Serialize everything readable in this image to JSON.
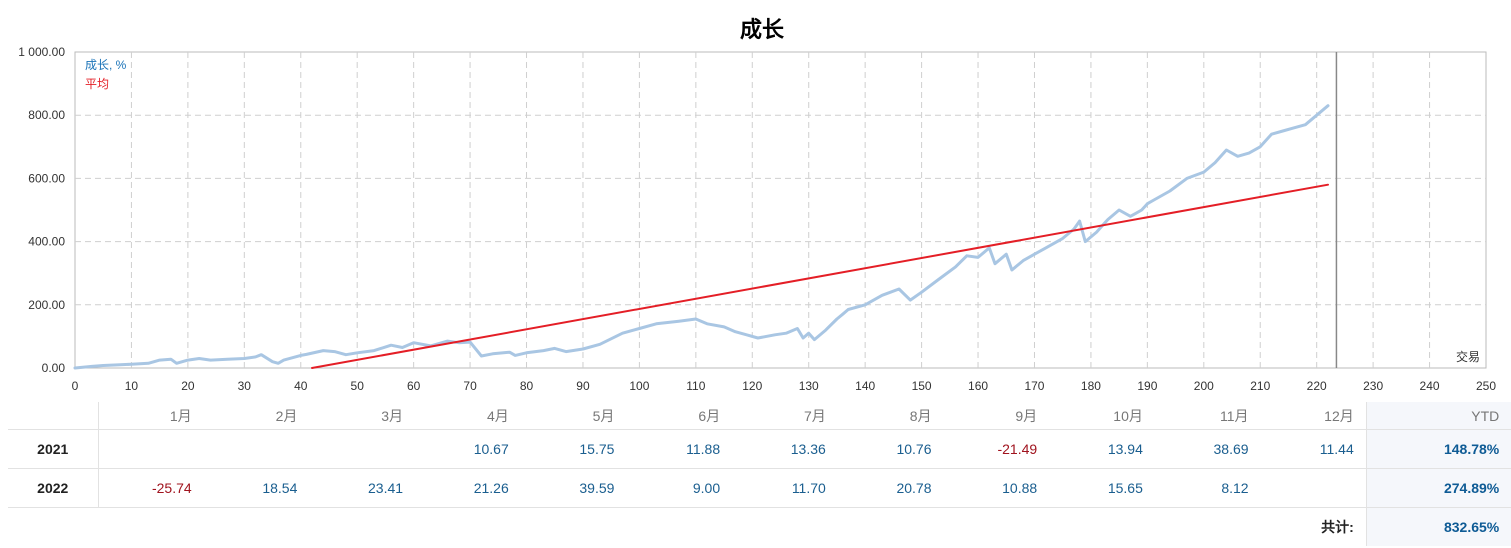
{
  "chart_data": {
    "type": "line",
    "title": "成长",
    "xlabel": "交易",
    "ylabel": "",
    "xlim": [
      0,
      250
    ],
    "ylim": [
      0,
      1000
    ],
    "x_ticks": [
      "0",
      "10",
      "20",
      "30",
      "40",
      "50",
      "60",
      "70",
      "80",
      "90",
      "100",
      "110",
      "120",
      "130",
      "140",
      "150",
      "160",
      "170",
      "180",
      "190",
      "200",
      "210",
      "220",
      "230",
      "240",
      "250"
    ],
    "y_ticks": [
      "0.00",
      "200.00",
      "400.00",
      "600.00",
      "800.00",
      "1 000.00"
    ],
    "grid": true,
    "legend_position": "top-left",
    "vertical_marker_x": 223.5,
    "series": [
      {
        "name": "成长, %",
        "color": "#a9c6e3",
        "x": [
          0,
          3,
          5,
          8,
          10,
          13,
          15,
          17,
          18,
          20,
          22,
          24,
          27,
          30,
          32,
          33,
          35,
          36,
          37,
          40,
          41,
          44,
          46,
          48,
          50,
          53,
          56,
          58,
          60,
          63,
          66,
          68,
          70,
          72,
          74,
          77,
          78,
          80,
          83,
          85,
          87,
          90,
          93,
          97,
          100,
          103,
          107,
          110,
          112,
          115,
          117,
          119,
          121,
          124,
          126,
          128,
          129,
          130,
          131,
          133,
          135,
          136,
          137,
          140,
          143,
          146,
          148,
          150,
          153,
          156,
          158,
          160,
          162,
          163,
          165,
          166,
          168,
          170,
          172,
          175,
          177,
          178,
          179,
          181,
          182,
          183,
          185,
          187,
          188,
          189,
          190,
          191,
          194,
          197,
          200,
          202,
          204,
          206,
          208,
          210,
          212,
          214,
          216,
          218,
          220,
          222
        ],
        "y": [
          0,
          5,
          8,
          10,
          12,
          15,
          25,
          28,
          15,
          25,
          30,
          25,
          28,
          30,
          35,
          42,
          20,
          15,
          25,
          40,
          43,
          55,
          52,
          42,
          48,
          55,
          72,
          65,
          80,
          70,
          85,
          80,
          82,
          38,
          45,
          50,
          40,
          48,
          55,
          62,
          52,
          60,
          75,
          110,
          125,
          140,
          148,
          155,
          140,
          130,
          115,
          105,
          95,
          105,
          110,
          125,
          95,
          110,
          90,
          120,
          155,
          170,
          185,
          200,
          230,
          250,
          215,
          240,
          280,
          320,
          355,
          350,
          380,
          330,
          360,
          310,
          340,
          360,
          380,
          410,
          440,
          465,
          400,
          430,
          450,
          470,
          500,
          480,
          490,
          500,
          520,
          530,
          560,
          600,
          620,
          650,
          690,
          670,
          680,
          700,
          740,
          750,
          760,
          770,
          800,
          830
        ]
      },
      {
        "name": "平均",
        "color": "#e41e26",
        "x": [
          42,
          222
        ],
        "y": [
          0,
          580
        ]
      }
    ]
  },
  "table": {
    "months": [
      "1月",
      "2月",
      "3月",
      "4月",
      "5月",
      "6月",
      "7月",
      "8月",
      "9月",
      "10月",
      "11月",
      "12月"
    ],
    "ytd_header": "YTD",
    "rows": [
      {
        "year": "2021",
        "values": [
          "",
          "",
          "",
          "10.67",
          "15.75",
          "11.88",
          "13.36",
          "10.76",
          "-21.49",
          "13.94",
          "38.69",
          "11.44"
        ],
        "ytd": "148.78%"
      },
      {
        "year": "2022",
        "values": [
          "-25.74",
          "18.54",
          "23.41",
          "21.26",
          "39.59",
          "9.00",
          "11.70",
          "20.78",
          "10.88",
          "15.65",
          "8.12",
          ""
        ],
        "ytd": "274.89%"
      }
    ],
    "total_label": "共计:",
    "total_value": "832.65%"
  }
}
